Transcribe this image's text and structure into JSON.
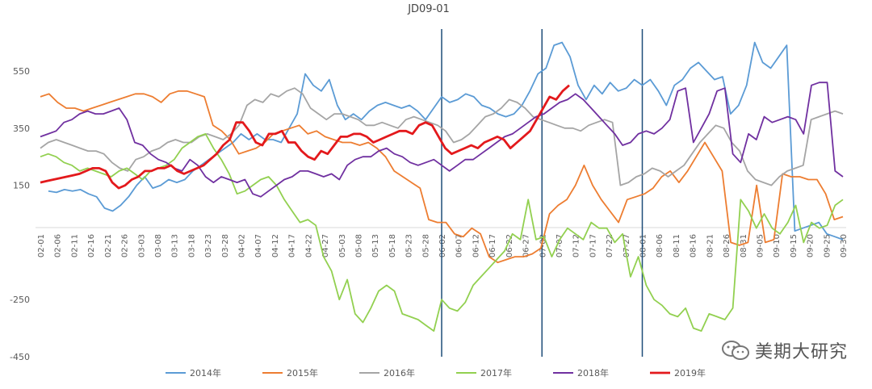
{
  "chart_data": {
    "type": "line",
    "title": "JD09-01",
    "ylim": [
      -450,
      650
    ],
    "yticks": [
      550,
      350,
      150,
      -250,
      -450
    ],
    "xticks": [
      "02-01",
      "02-06",
      "02-11",
      "02-16",
      "02-21",
      "02-26",
      "03-03",
      "03-08",
      "03-13",
      "03-18",
      "03-23",
      "03-28",
      "04-02",
      "04-07",
      "04-12",
      "04-17",
      "04-22",
      "04-27",
      "05-03",
      "05-08",
      "05-13",
      "05-18",
      "05-23",
      "05-28",
      "06-02",
      "06-07",
      "06-12",
      "06-17",
      "06-22",
      "06-27",
      "07-02",
      "07-07",
      "07-12",
      "07-17",
      "07-22",
      "07-27",
      "08-01",
      "08-06",
      "08-11",
      "08-16",
      "08-21",
      "08-26",
      "08-31",
      "09-05",
      "09-10",
      "09-15",
      "09-20",
      "09-25",
      "09-30"
    ],
    "vlines": [
      "06-02",
      "07-02",
      "08-01"
    ],
    "grid": false,
    "legend_position": "bottom",
    "series": [
      {
        "name": "2014年",
        "color": "#5b9bd5",
        "y": [
          null,
          130,
          125,
          135,
          130,
          135,
          120,
          110,
          70,
          60,
          80,
          110,
          150,
          180,
          140,
          150,
          170,
          160,
          170,
          200,
          220,
          240,
          260,
          280,
          300,
          330,
          310,
          330,
          310,
          310,
          300,
          350,
          400,
          540,
          500,
          480,
          520,
          430,
          380,
          400,
          380,
          410,
          430,
          440,
          430,
          420,
          430,
          410,
          380,
          420,
          460,
          440,
          450,
          470,
          460,
          430,
          420,
          400,
          390,
          400,
          430,
          480,
          540,
          560,
          640,
          650,
          600,
          500,
          450,
          500,
          470,
          510,
          480,
          490,
          520,
          500,
          520,
          480,
          430,
          500,
          520,
          560,
          580,
          550,
          520,
          530,
          400,
          430,
          500,
          650,
          580,
          560,
          600,
          640,
          -10,
          0,
          10,
          20,
          -20,
          -30,
          -40
        ]
      },
      {
        "name": "2015年",
        "color": "#ed7d31",
        "y": [
          460,
          470,
          440,
          420,
          420,
          410,
          420,
          430,
          440,
          450,
          460,
          470,
          470,
          460,
          440,
          470,
          480,
          480,
          470,
          460,
          360,
          340,
          310,
          260,
          270,
          280,
          300,
          330,
          340,
          350,
          360,
          330,
          340,
          320,
          310,
          300,
          300,
          290,
          300,
          280,
          250,
          200,
          180,
          160,
          140,
          30,
          20,
          20,
          -20,
          -30,
          0,
          -20,
          -100,
          -120,
          -110,
          -100,
          -100,
          -90,
          -70,
          50,
          80,
          100,
          150,
          220,
          150,
          100,
          60,
          20,
          100,
          110,
          120,
          140,
          180,
          200,
          160,
          200,
          250,
          300,
          250,
          200,
          -50,
          -60,
          -50,
          150,
          -50,
          -40,
          190,
          180,
          180,
          170,
          170,
          120,
          30,
          40
        ]
      },
      {
        "name": "2016年",
        "color": "#a5a5a5",
        "y": [
          280,
          300,
          310,
          300,
          290,
          280,
          270,
          270,
          260,
          230,
          210,
          200,
          240,
          250,
          270,
          280,
          300,
          310,
          300,
          300,
          320,
          330,
          320,
          310,
          330,
          360,
          430,
          450,
          440,
          470,
          460,
          480,
          490,
          470,
          420,
          400,
          380,
          400,
          400,
          390,
          380,
          360,
          360,
          370,
          360,
          350,
          380,
          390,
          380,
          370,
          360,
          340,
          300,
          310,
          330,
          360,
          390,
          400,
          420,
          450,
          440,
          420,
          390,
          380,
          370,
          360,
          350,
          350,
          340,
          360,
          370,
          380,
          370,
          150,
          160,
          180,
          190,
          210,
          200,
          180,
          200,
          220,
          260,
          300,
          330,
          360,
          350,
          300,
          270,
          200,
          170,
          160,
          150,
          180,
          200,
          210,
          220,
          380,
          390,
          400,
          410,
          400
        ]
      },
      {
        "name": "2017年",
        "color": "#92d050",
        "y": [
          250,
          260,
          250,
          230,
          220,
          200,
          210,
          200,
          190,
          180,
          200,
          210,
          190,
          170,
          200,
          210,
          220,
          240,
          280,
          300,
          320,
          330,
          280,
          240,
          190,
          120,
          130,
          150,
          170,
          180,
          150,
          100,
          60,
          20,
          30,
          10,
          -100,
          -150,
          -250,
          -180,
          -300,
          -330,
          -280,
          -220,
          -200,
          -220,
          -300,
          -310,
          -320,
          -340,
          -360,
          -250,
          -280,
          -290,
          -260,
          -200,
          -170,
          -140,
          -110,
          -80,
          -20,
          -40,
          100,
          -40,
          -30,
          -100,
          -40,
          0,
          -20,
          -40,
          20,
          0,
          0,
          -50,
          -20,
          -170,
          -100,
          -200,
          -250,
          -270,
          -300,
          -310,
          -280,
          -350,
          -360,
          -300,
          -310,
          -320,
          -280,
          100,
          60,
          0,
          50,
          0,
          -20,
          20,
          80,
          -50,
          20,
          0,
          10,
          80,
          100
        ]
      },
      {
        "name": "2018年",
        "color": "#7030a0",
        "y": [
          320,
          330,
          340,
          370,
          380,
          400,
          410,
          400,
          400,
          410,
          420,
          380,
          300,
          290,
          260,
          240,
          230,
          210,
          200,
          240,
          220,
          180,
          160,
          180,
          170,
          160,
          170,
          120,
          110,
          130,
          150,
          170,
          180,
          200,
          200,
          190,
          180,
          190,
          170,
          220,
          240,
          250,
          250,
          270,
          280,
          260,
          250,
          230,
          220,
          230,
          240,
          220,
          200,
          220,
          240,
          240,
          260,
          280,
          300,
          320,
          330,
          350,
          370,
          390,
          400,
          420,
          440,
          450,
          470,
          450,
          420,
          390,
          360,
          330,
          290,
          300,
          330,
          340,
          330,
          350,
          380,
          480,
          490,
          300,
          350,
          400,
          480,
          490,
          260,
          230,
          330,
          310,
          390,
          370,
          380,
          390,
          380,
          330,
          500,
          510,
          510,
          200,
          180
        ]
      },
      {
        "name": "2019年",
        "color": "#e3191c",
        "y": [
          160,
          165,
          170,
          175,
          180,
          185,
          190,
          200,
          210,
          210,
          200,
          160,
          140,
          150,
          170,
          180,
          200,
          200,
          210,
          210,
          220,
          200,
          190,
          200,
          210,
          220,
          240,
          260,
          290,
          310,
          370,
          370,
          340,
          300,
          290,
          330,
          330,
          340,
          300,
          300,
          270,
          250,
          240,
          270,
          260,
          290,
          320,
          320,
          330,
          330,
          320,
          300,
          310,
          320,
          330,
          340,
          340,
          330,
          360,
          370,
          360,
          320,
          280,
          260,
          270,
          280,
          290,
          280,
          300,
          310,
          320,
          310,
          280,
          300,
          320,
          340,
          380,
          420,
          460,
          450,
          480,
          500
        ]
      }
    ]
  },
  "watermark": {
    "text": "美期大研究"
  }
}
